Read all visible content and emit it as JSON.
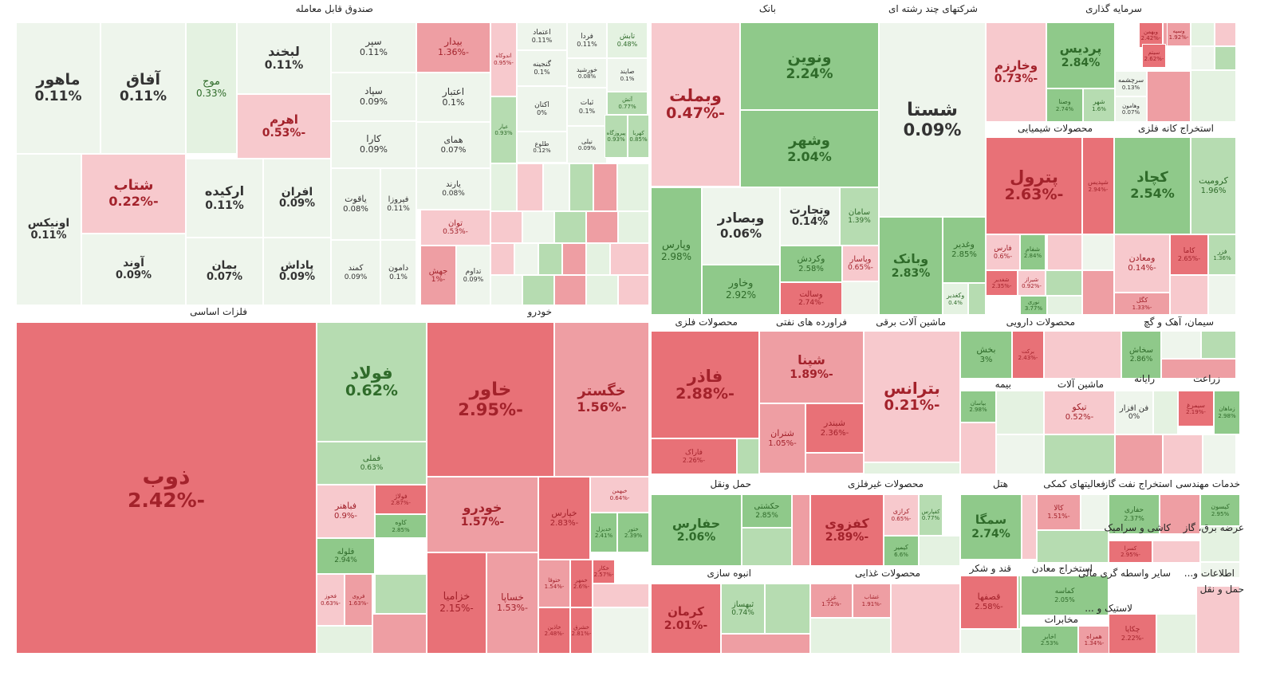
{
  "colors": {
    "strong_green": "#8fc98a",
    "green": "#b6dcb1",
    "light_green": "#e4f2e1",
    "neutral": "#eef5ec",
    "light_red": "#f7c9cd",
    "red": "#ee9ea3",
    "strong_red": "#e87177",
    "text_green": "#2f6b2a",
    "text_red": "#a3222b",
    "text_dark": "#333333"
  },
  "chart_data": {
    "type": "treemap",
    "unit": "%",
    "sectors": [
      {
        "name": "صندوق قابل معامله",
        "tiles": [
          {
            "symbol": "ماهور",
            "change": 0.11
          },
          {
            "symbol": "آفاق",
            "change": 0.11
          },
          {
            "symbol": "موج",
            "change": 0.33
          },
          {
            "symbol": "لبخند",
            "change": 0.11
          },
          {
            "symbol": "اهرم",
            "change": -0.53
          },
          {
            "symbol": "سپر",
            "change": 0.11
          },
          {
            "symbol": "سپاد",
            "change": 0.09
          },
          {
            "symbol": "کارا",
            "change": 0.09
          },
          {
            "symbol": "اونیکس",
            "change": 0.11
          },
          {
            "symbol": "شتاب",
            "change": -0.22
          },
          {
            "symbol": "آوند",
            "change": 0.09
          },
          {
            "symbol": "ارکیده",
            "change": 0.11
          },
          {
            "symbol": "بمان",
            "change": 0.07
          },
          {
            "symbol": "افران",
            "change": 0.09
          },
          {
            "symbol": "پاداش",
            "change": 0.09
          },
          {
            "symbol": "یاقوت",
            "change": 0.08
          },
          {
            "symbol": "کمند",
            "change": 0.09
          },
          {
            "symbol": "فیروزا",
            "change": 0.11
          },
          {
            "symbol": "دامون",
            "change": 0.1
          },
          {
            "symbol": "بیدار",
            "change": -1.36
          },
          {
            "symbol": "اعتبار",
            "change": 0.1
          },
          {
            "symbol": "همای",
            "change": 0.07
          },
          {
            "symbol": "یارند",
            "change": 0.08
          },
          {
            "symbol": "توان",
            "change": -0.53
          },
          {
            "symbol": "جهش",
            "change": -1
          },
          {
            "symbol": "تداوم",
            "change": 0.09
          },
          {
            "symbol": "اعتماد",
            "change": 0.11
          },
          {
            "symbol": "گنجینه",
            "change": 0.1
          },
          {
            "symbol": "اکتان",
            "change": 0
          },
          {
            "symbol": "طلوع",
            "change": 0.12
          },
          {
            "symbol": "فردا",
            "change": 0.11
          },
          {
            "symbol": "خورشید",
            "change": 0.08
          },
          {
            "symbol": "ثبات",
            "change": 0.1
          },
          {
            "symbol": "نیلی",
            "change": 0.09
          },
          {
            "symbol": "تابش",
            "change": 0.48
          },
          {
            "symbol": "صایند",
            "change": 0.1
          },
          {
            "symbol": "آتش",
            "change": 0.77
          },
          {
            "symbol": "پیروزگاه",
            "change": 0.93
          },
          {
            "symbol": "کهربا",
            "change": 0.85
          },
          {
            "symbol": "اندوکاه",
            "change": -0.95
          },
          {
            "symbol": "عیار",
            "change": 0.93
          }
        ]
      },
      {
        "name": "بانک",
        "tiles": [
          {
            "symbol": "وبملت",
            "change": -0.47
          },
          {
            "symbol": "ونوین",
            "change": 2.24
          },
          {
            "symbol": "وشهر",
            "change": 2.04
          },
          {
            "symbol": "وبصادر",
            "change": 0.06
          },
          {
            "symbol": "وتجارت",
            "change": 0.14
          },
          {
            "symbol": "وپارس",
            "change": 2.98
          },
          {
            "symbol": "وخاور",
            "change": 2.92
          },
          {
            "symbol": "وکردش",
            "change": 2.58
          },
          {
            "symbol": "وسالت",
            "change": -2.74
          },
          {
            "symbol": "سامان",
            "change": 1.39
          },
          {
            "symbol": "وپاسار",
            "change": -0.65
          }
        ]
      },
      {
        "name": "شرکتهای چند رشته ای",
        "tiles": [
          {
            "symbol": "شستا",
            "change": 0.09
          },
          {
            "symbol": "وبانک",
            "change": 2.83
          },
          {
            "symbol": "وغدیر",
            "change": 2.85
          },
          {
            "symbol": "وکغدیر",
            "change": 0.4
          }
        ]
      },
      {
        "name": "سرمایه گذاری",
        "tiles": [
          {
            "symbol": "وخارزم",
            "change": -0.73
          },
          {
            "symbol": "پردیس",
            "change": 2.84
          },
          {
            "symbol": "وصنا",
            "change": 2.74
          },
          {
            "symbol": "شهر",
            "change": 1.6
          },
          {
            "symbol": "سرچشمه",
            "change": 0.13
          },
          {
            "symbol": "وبهمن",
            "change": -2.42
          },
          {
            "symbol": "وسپه",
            "change": -1.92
          },
          {
            "symbol": "سیتم",
            "change": -2.62
          },
          {
            "symbol": "وهامون",
            "change": 0.07
          }
        ]
      },
      {
        "name": "محصولات شیمیایی",
        "tiles": [
          {
            "symbol": "پترول",
            "change": -2.63
          },
          {
            "symbol": "شپدیس",
            "change": -2.94
          },
          {
            "symbol": "فارس",
            "change": -0.6
          },
          {
            "symbol": "شفام",
            "change": 2.84
          },
          {
            "symbol": "شغدیر",
            "change": -2.35
          },
          {
            "symbol": "شیراز",
            "change": -0.92
          },
          {
            "symbol": "نوری",
            "change": 3.77
          }
        ]
      },
      {
        "name": "استخراج کانه فلزی",
        "tiles": [
          {
            "symbol": "کچاد",
            "change": 2.54
          },
          {
            "symbol": "کرومیت",
            "change": 1.96
          },
          {
            "symbol": "ومعادن",
            "change": -0.14
          },
          {
            "symbol": "کاما",
            "change": -2.65
          },
          {
            "symbol": "فزر",
            "change": 1.36
          },
          {
            "symbol": "کگل",
            "change": -1.33
          }
        ]
      },
      {
        "name": "فلزات اساسی",
        "tiles": [
          {
            "symbol": "ذوب",
            "change": -2.42
          },
          {
            "symbol": "فولاد",
            "change": 0.62
          },
          {
            "symbol": "فملی",
            "change": 0.63
          },
          {
            "symbol": "فباهنر",
            "change": -0.9
          },
          {
            "symbol": "فولاژ",
            "change": -2.87
          },
          {
            "symbol": "کاوه",
            "change": 2.85
          },
          {
            "symbol": "فلوله",
            "change": 2.94
          },
          {
            "symbol": "فخوز",
            "change": -0.63
          },
          {
            "symbol": "فروی",
            "change": -1.63
          }
        ]
      },
      {
        "name": "خودرو",
        "tiles": [
          {
            "symbol": "خاور",
            "change": -2.95
          },
          {
            "symbol": "خگستر",
            "change": -1.56
          },
          {
            "symbol": "خودرو",
            "change": -1.57
          },
          {
            "symbol": "خپارس",
            "change": -2.83
          },
          {
            "symbol": "خزامیا",
            "change": -2.15
          },
          {
            "symbol": "خساپا",
            "change": -1.53
          },
          {
            "symbol": "خبهمن",
            "change": -0.64
          },
          {
            "symbol": "خدیزل",
            "change": 2.41
          },
          {
            "symbol": "ختور",
            "change": 2.39
          },
          {
            "symbol": "ختوقا",
            "change": -1.54
          },
          {
            "symbol": "خمهر",
            "change": -2.6
          },
          {
            "symbol": "خکار",
            "change": -2.57
          },
          {
            "symbol": "خاذین",
            "change": -2.48
          },
          {
            "symbol": "خشرق",
            "change": -2.81
          }
        ]
      },
      {
        "name": "محصولات فلزی",
        "tiles": [
          {
            "symbol": "فاذر",
            "change": -2.88
          },
          {
            "symbol": "فاراک",
            "change": -2.26
          }
        ]
      },
      {
        "name": "فراورده های نفتی",
        "tiles": [
          {
            "symbol": "شپنا",
            "change": -1.89
          },
          {
            "symbol": "شتران",
            "change": -1.05
          },
          {
            "symbol": "شبندر",
            "change": -2.36
          }
        ]
      },
      {
        "name": "ماشین آلات برقی",
        "tiles": [
          {
            "symbol": "بترانس",
            "change": -0.21
          }
        ]
      },
      {
        "name": "محصولات دارویی",
        "tiles": [
          {
            "symbol": "بخش",
            "change": 3
          },
          {
            "symbol": "برکت",
            "change": -2.43
          }
        ]
      },
      {
        "name": "سیمان، آهک و گچ",
        "tiles": [
          {
            "symbol": "سخاش",
            "change": 2.86
          }
        ]
      },
      {
        "name": "بیمه",
        "tiles": [
          {
            "symbol": "بپاسان",
            "change": 2.98
          }
        ]
      },
      {
        "name": "ماشین آلات",
        "tiles": [
          {
            "symbol": "تیکو",
            "change": -0.52
          }
        ]
      },
      {
        "name": "رایانه",
        "tiles": [
          {
            "symbol": "فن افزار",
            "change": 0
          }
        ]
      },
      {
        "name": "زراعت",
        "tiles": [
          {
            "symbol": "سیمرغ",
            "change": -2.19
          },
          {
            "symbol": "زماهان",
            "change": 2.98
          }
        ]
      },
      {
        "name": "حمل ونقل",
        "tiles": [
          {
            "symbol": "حفارس",
            "change": 2.06
          },
          {
            "symbol": "حکشتی",
            "change": 2.85
          }
        ]
      },
      {
        "name": "محصولات غیرفلزی",
        "tiles": [
          {
            "symbol": "کفزوی",
            "change": -2.89
          },
          {
            "symbol": "کرازی",
            "change": -0.65
          },
          {
            "symbol": "کفپارس",
            "change": 0.77
          },
          {
            "symbol": "کیمیر",
            "change": 6.6
          }
        ]
      },
      {
        "name": "هتل",
        "tiles": [
          {
            "symbol": "سمگا",
            "change": 2.74
          }
        ]
      },
      {
        "name": "فعالیتهای کمکی",
        "tiles": [
          {
            "symbol": "کالا",
            "change": -1.51
          }
        ]
      },
      {
        "name": "استخراج نفت گاز",
        "tiles": [
          {
            "symbol": "حفاری",
            "change": 2.37
          }
        ]
      },
      {
        "name": "خدمات مهندسی",
        "tiles": [
          {
            "symbol": "کیسون",
            "change": 2.95
          }
        ]
      },
      {
        "name": "کاشی و سرامیک",
        "tiles": [
          {
            "symbol": "کسرا",
            "change": -2.95
          }
        ]
      },
      {
        "name": "عرضه برق، گاز",
        "tiles": []
      },
      {
        "name": "انبوه سازی",
        "tiles": [
          {
            "symbol": "کرمان",
            "change": -2.01
          },
          {
            "symbol": "ثبهساز",
            "change": 0.74
          }
        ]
      },
      {
        "name": "محصولات غذایی",
        "tiles": [
          {
            "symbol": "غزر",
            "change": -1.72
          },
          {
            "symbol": "غشاب",
            "change": -1.91
          }
        ]
      },
      {
        "name": "قند و شکر",
        "tiles": [
          {
            "symbol": "قصفها",
            "change": -2.58
          }
        ]
      },
      {
        "name": "استخراج معادن",
        "tiles": [
          {
            "symbol": "کماسه",
            "change": 2.05
          }
        ]
      },
      {
        "name": "مخابرات",
        "tiles": [
          {
            "symbol": "اخابر",
            "change": 2.53
          },
          {
            "symbol": "همراه",
            "change": -1.34
          }
        ]
      },
      {
        "name": "سایر واسطه گری مالی",
        "tiles": [
          {
            "symbol": "چکاپا",
            "change": -2.22
          }
        ]
      },
      {
        "name": "لاستیک و ...",
        "tiles": []
      },
      {
        "name": "اطلاعات و...",
        "tiles": []
      },
      {
        "name": "حمل و نقل",
        "tiles": []
      }
    ]
  }
}
